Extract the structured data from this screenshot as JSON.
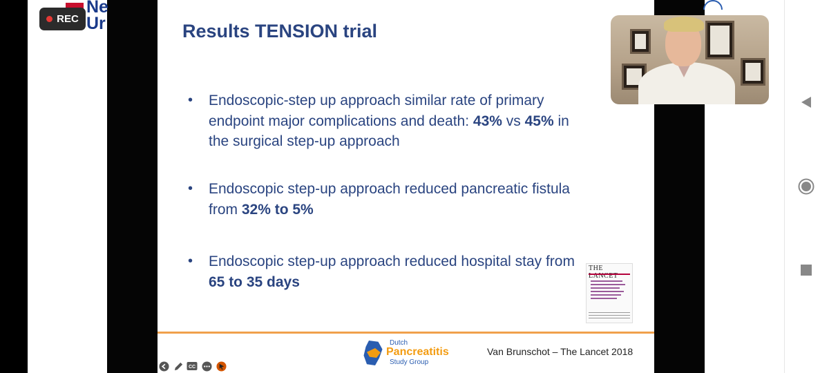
{
  "recording": {
    "label": "REC"
  },
  "header_logo": {
    "text_top": "Ne",
    "text_bottom": "Ur"
  },
  "slide": {
    "title": "Results TENSION trial",
    "bullets": [
      {
        "parts": [
          {
            "text": "Endoscopic-step up approach similar rate of primary endpoint major complications and death: ",
            "bold": false
          },
          {
            "text": "43%",
            "bold": true
          },
          {
            "text": " vs ",
            "bold": false
          },
          {
            "text": "45%",
            "bold": true
          },
          {
            "text": " in the surgical step-up approach",
            "bold": false
          }
        ]
      },
      {
        "parts": [
          {
            "text": "Endoscopic step-up approach reduced pancreatic fistula from ",
            "bold": false
          },
          {
            "text": "32% to 5%",
            "bold": true
          }
        ]
      },
      {
        "parts": [
          {
            "text": "Endoscopic step-up approach reduced hospital stay from ",
            "bold": false
          },
          {
            "text": "65 to 35 days",
            "bold": true
          }
        ]
      }
    ],
    "journal_thumbnail_title": "THE LANCET",
    "footer_logo": {
      "line1": "Dutch",
      "line2": "Pancreatitis",
      "line3": "Study Group"
    },
    "citation": "Van Brunschot – The Lancet 2018"
  },
  "controls": [
    {
      "name": "back-arrow-icon",
      "glyph": "◀"
    },
    {
      "name": "pen-icon",
      "glyph": "✎"
    },
    {
      "name": "closed-captions-icon",
      "glyph": "CC"
    },
    {
      "name": "more-options-icon",
      "glyph": "•••"
    },
    {
      "name": "laser-pointer-icon",
      "glyph": "⬤"
    }
  ],
  "nav_bar": {
    "back_icon": "triangle-back-icon",
    "home_icon": "circle-home-icon",
    "recents_icon": "square-recents-icon"
  },
  "colors": {
    "title": "#2a4480",
    "accent_line": "#f0a04b",
    "rec_dot": "#e53935",
    "lancet_red": "#b3003a"
  }
}
